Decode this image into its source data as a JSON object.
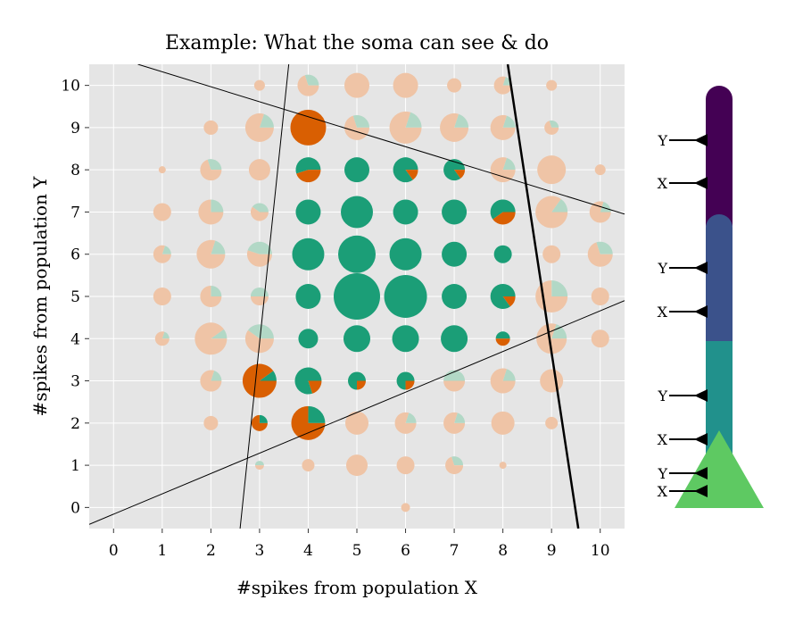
{
  "chart_data": {
    "type": "scatter",
    "title": "Example: What the soma can see & do",
    "xlabel": "#spikes from population X",
    "ylabel": "#spikes from population Y",
    "xlim": [
      -0.5,
      10.5
    ],
    "ylim": [
      -0.5,
      10.5
    ],
    "xticks": [
      0,
      1,
      2,
      3,
      4,
      5,
      6,
      7,
      8,
      9,
      10
    ],
    "yticks": [
      0,
      1,
      2,
      3,
      4,
      5,
      6,
      7,
      8,
      9,
      10
    ],
    "grid": true,
    "colors": {
      "background": "#e5e5e5",
      "grid": "#ffffff",
      "green": "#1b9e77",
      "orange": "#d95f02",
      "faded_green": "#b2d8c6",
      "faded_orange": "#efc4a6"
    },
    "points": [
      {
        "x": 3,
        "y": 10,
        "size": 0.3,
        "green": 0,
        "orange": 1,
        "faded": true
      },
      {
        "x": 4,
        "y": 10,
        "size": 0.6,
        "green": 0.3,
        "orange": 0.7,
        "faded": true
      },
      {
        "x": 5,
        "y": 10,
        "size": 0.7,
        "green": 0,
        "orange": 1,
        "faded": true
      },
      {
        "x": 6,
        "y": 10,
        "size": 0.7,
        "green": 0,
        "orange": 1,
        "faded": true
      },
      {
        "x": 7,
        "y": 10,
        "size": 0.4,
        "green": 0,
        "orange": 1,
        "faded": true
      },
      {
        "x": 8,
        "y": 10,
        "size": 0.5,
        "green": 0.2,
        "orange": 0.8,
        "faded": true
      },
      {
        "x": 9,
        "y": 10,
        "size": 0.3,
        "green": 0,
        "orange": 1,
        "faded": true
      },
      {
        "x": 2,
        "y": 9,
        "size": 0.4,
        "green": 0,
        "orange": 1,
        "faded": true
      },
      {
        "x": 3,
        "y": 9,
        "size": 0.8,
        "green": 0.2,
        "orange": 0.8,
        "faded": true
      },
      {
        "x": 4,
        "y": 9,
        "size": 1.0,
        "green": 0,
        "orange": 1,
        "faded": false
      },
      {
        "x": 5,
        "y": 9,
        "size": 0.7,
        "green": 0.3,
        "orange": 0.7,
        "faded": true
      },
      {
        "x": 6,
        "y": 9,
        "size": 0.9,
        "green": 0.2,
        "orange": 0.8,
        "faded": true
      },
      {
        "x": 7,
        "y": 9,
        "size": 0.8,
        "green": 0.2,
        "orange": 0.8,
        "faded": true
      },
      {
        "x": 8,
        "y": 9,
        "size": 0.7,
        "green": 0.2,
        "orange": 0.8,
        "faded": true
      },
      {
        "x": 9,
        "y": 9,
        "size": 0.4,
        "green": 0.3,
        "orange": 0.7,
        "faded": true
      },
      {
        "x": 1,
        "y": 8,
        "size": 0.2,
        "green": 0,
        "orange": 1,
        "faded": true
      },
      {
        "x": 2,
        "y": 8,
        "size": 0.6,
        "green": 0.3,
        "orange": 0.7,
        "faded": true
      },
      {
        "x": 3,
        "y": 8,
        "size": 0.6,
        "green": 0,
        "orange": 1,
        "faded": true
      },
      {
        "x": 4,
        "y": 8,
        "size": 0.7,
        "green": 0.55,
        "orange": 0.45,
        "faded": false
      },
      {
        "x": 5,
        "y": 8,
        "size": 0.7,
        "green": 1,
        "orange": 0,
        "faded": false
      },
      {
        "x": 6,
        "y": 8,
        "size": 0.7,
        "green": 0.85,
        "orange": 0.15,
        "faded": false
      },
      {
        "x": 7,
        "y": 8,
        "size": 0.6,
        "green": 0.85,
        "orange": 0.15,
        "faded": false
      },
      {
        "x": 8,
        "y": 8,
        "size": 0.7,
        "green": 0.2,
        "orange": 0.8,
        "faded": true
      },
      {
        "x": 9,
        "y": 8,
        "size": 0.8,
        "green": 0,
        "orange": 1,
        "faded": true
      },
      {
        "x": 10,
        "y": 8,
        "size": 0.3,
        "green": 0,
        "orange": 1,
        "faded": true
      },
      {
        "x": 1,
        "y": 7,
        "size": 0.5,
        "green": 0,
        "orange": 1,
        "faded": true
      },
      {
        "x": 2,
        "y": 7,
        "size": 0.7,
        "green": 0.25,
        "orange": 0.75,
        "faded": true
      },
      {
        "x": 3,
        "y": 7,
        "size": 0.5,
        "green": 0.4,
        "orange": 0.6,
        "faded": true
      },
      {
        "x": 4,
        "y": 7,
        "size": 0.7,
        "green": 1,
        "orange": 0,
        "faded": false
      },
      {
        "x": 5,
        "y": 7,
        "size": 0.9,
        "green": 1,
        "orange": 0,
        "faded": false
      },
      {
        "x": 6,
        "y": 7,
        "size": 0.7,
        "green": 1,
        "orange": 0,
        "faded": false
      },
      {
        "x": 7,
        "y": 7,
        "size": 0.7,
        "green": 1,
        "orange": 0,
        "faded": false
      },
      {
        "x": 8,
        "y": 7,
        "size": 0.7,
        "green": 0.6,
        "orange": 0.4,
        "faded": false
      },
      {
        "x": 9,
        "y": 7,
        "size": 0.9,
        "green": 0.15,
        "orange": 0.85,
        "faded": true
      },
      {
        "x": 10,
        "y": 7,
        "size": 0.6,
        "green": 0.2,
        "orange": 0.8,
        "faded": true
      },
      {
        "x": 1,
        "y": 6,
        "size": 0.5,
        "green": 0.2,
        "orange": 0.8,
        "faded": true
      },
      {
        "x": 2,
        "y": 6,
        "size": 0.8,
        "green": 0.2,
        "orange": 0.8,
        "faded": true
      },
      {
        "x": 3,
        "y": 6,
        "size": 0.7,
        "green": 0.45,
        "orange": 0.55,
        "faded": true
      },
      {
        "x": 4,
        "y": 6,
        "size": 0.9,
        "green": 1,
        "orange": 0,
        "faded": false
      },
      {
        "x": 5,
        "y": 6,
        "size": 1.05,
        "green": 1,
        "orange": 0,
        "faded": false
      },
      {
        "x": 6,
        "y": 6,
        "size": 0.9,
        "green": 1,
        "orange": 0,
        "faded": false
      },
      {
        "x": 7,
        "y": 6,
        "size": 0.7,
        "green": 1,
        "orange": 0,
        "faded": false
      },
      {
        "x": 8,
        "y": 6,
        "size": 0.5,
        "green": 1,
        "orange": 0,
        "faded": false
      },
      {
        "x": 9,
        "y": 6,
        "size": 0.5,
        "green": 0,
        "orange": 1,
        "faded": true
      },
      {
        "x": 10,
        "y": 6,
        "size": 0.7,
        "green": 0.3,
        "orange": 0.7,
        "faded": true
      },
      {
        "x": 1,
        "y": 5,
        "size": 0.5,
        "green": 0,
        "orange": 1,
        "faded": true
      },
      {
        "x": 2,
        "y": 5,
        "size": 0.6,
        "green": 0.25,
        "orange": 0.75,
        "faded": true
      },
      {
        "x": 3,
        "y": 5,
        "size": 0.5,
        "green": 0.5,
        "orange": 0.5,
        "faded": true
      },
      {
        "x": 4,
        "y": 5,
        "size": 0.7,
        "green": 1,
        "orange": 0,
        "faded": false
      },
      {
        "x": 5,
        "y": 5,
        "size": 1.3,
        "green": 1,
        "orange": 0,
        "faded": false
      },
      {
        "x": 6,
        "y": 5,
        "size": 1.2,
        "green": 1,
        "orange": 0,
        "faded": false
      },
      {
        "x": 7,
        "y": 5,
        "size": 0.7,
        "green": 1,
        "orange": 0,
        "faded": false
      },
      {
        "x": 8,
        "y": 5,
        "size": 0.7,
        "green": 0.85,
        "orange": 0.15,
        "faded": false
      },
      {
        "x": 9,
        "y": 5,
        "size": 0.9,
        "green": 0.25,
        "orange": 0.75,
        "faded": true
      },
      {
        "x": 10,
        "y": 5,
        "size": 0.5,
        "green": 0,
        "orange": 1,
        "faded": true
      },
      {
        "x": 1,
        "y": 4,
        "size": 0.4,
        "green": 0.2,
        "orange": 0.8,
        "faded": true
      },
      {
        "x": 2,
        "y": 4,
        "size": 0.9,
        "green": 0.1,
        "orange": 0.9,
        "faded": true
      },
      {
        "x": 3,
        "y": 4,
        "size": 0.8,
        "green": 0.4,
        "orange": 0.6,
        "faded": true
      },
      {
        "x": 4,
        "y": 4,
        "size": 0.55,
        "green": 1,
        "orange": 0,
        "faded": false
      },
      {
        "x": 5,
        "y": 4,
        "size": 0.75,
        "green": 1,
        "orange": 0,
        "faded": false
      },
      {
        "x": 6,
        "y": 4,
        "size": 0.75,
        "green": 1,
        "orange": 0,
        "faded": false
      },
      {
        "x": 7,
        "y": 4,
        "size": 0.75,
        "green": 1,
        "orange": 0,
        "faded": false
      },
      {
        "x": 8,
        "y": 4,
        "size": 0.4,
        "green": 0.5,
        "orange": 0.5,
        "faded": false
      },
      {
        "x": 9,
        "y": 4,
        "size": 0.85,
        "green": 0.2,
        "orange": 0.8,
        "faded": true
      },
      {
        "x": 10,
        "y": 4,
        "size": 0.5,
        "green": 0,
        "orange": 1,
        "faded": true
      },
      {
        "x": 2,
        "y": 3,
        "size": 0.6,
        "green": 0.2,
        "orange": 0.8,
        "faded": true
      },
      {
        "x": 3,
        "y": 3,
        "size": 0.95,
        "green": 0.1,
        "orange": 0.9,
        "faded": false
      },
      {
        "x": 4,
        "y": 3,
        "size": 0.75,
        "green": 0.8,
        "orange": 0.2,
        "faded": false
      },
      {
        "x": 5,
        "y": 3,
        "size": 0.5,
        "green": 0.75,
        "orange": 0.25,
        "faded": false
      },
      {
        "x": 6,
        "y": 3,
        "size": 0.5,
        "green": 0.75,
        "orange": 0.25,
        "faded": false
      },
      {
        "x": 7,
        "y": 3,
        "size": 0.6,
        "green": 0.5,
        "orange": 0.5,
        "faded": true
      },
      {
        "x": 8,
        "y": 3,
        "size": 0.7,
        "green": 0.2,
        "orange": 0.8,
        "faded": true
      },
      {
        "x": 9,
        "y": 3,
        "size": 0.65,
        "green": 0,
        "orange": 1,
        "faded": true
      },
      {
        "x": 2,
        "y": 2,
        "size": 0.4,
        "green": 0,
        "orange": 1,
        "faded": true
      },
      {
        "x": 3,
        "y": 2,
        "size": 0.45,
        "green": 0.25,
        "orange": 0.75,
        "faded": false
      },
      {
        "x": 4,
        "y": 2,
        "size": 0.95,
        "green": 0.25,
        "orange": 0.75,
        "faded": false
      },
      {
        "x": 5,
        "y": 2,
        "size": 0.65,
        "green": 0,
        "orange": 1,
        "faded": true
      },
      {
        "x": 6,
        "y": 2,
        "size": 0.6,
        "green": 0.2,
        "orange": 0.8,
        "faded": true
      },
      {
        "x": 7,
        "y": 2,
        "size": 0.6,
        "green": 0.2,
        "orange": 0.8,
        "faded": true
      },
      {
        "x": 8,
        "y": 2,
        "size": 0.65,
        "green": 0,
        "orange": 1,
        "faded": true
      },
      {
        "x": 9,
        "y": 2,
        "size": 0.35,
        "green": 0,
        "orange": 1,
        "faded": true
      },
      {
        "x": 3,
        "y": 1,
        "size": 0.25,
        "green": 0.5,
        "orange": 0.5,
        "faded": true
      },
      {
        "x": 4,
        "y": 1,
        "size": 0.35,
        "green": 0,
        "orange": 1,
        "faded": true
      },
      {
        "x": 5,
        "y": 1,
        "size": 0.6,
        "green": 0,
        "orange": 1,
        "faded": true
      },
      {
        "x": 6,
        "y": 1,
        "size": 0.5,
        "green": 0,
        "orange": 1,
        "faded": true
      },
      {
        "x": 7,
        "y": 1,
        "size": 0.5,
        "green": 0.3,
        "orange": 0.7,
        "faded": true
      },
      {
        "x": 8,
        "y": 1,
        "size": 0.2,
        "green": 0,
        "orange": 1,
        "faded": true
      },
      {
        "x": 6,
        "y": 0,
        "size": 0.25,
        "green": 0,
        "orange": 1,
        "faded": true
      }
    ],
    "lines": [
      {
        "x1": -0.5,
        "y1": -0.4,
        "x2": 10.5,
        "y2": 4.9,
        "width": 1
      },
      {
        "x1": 0.5,
        "y1": 10.5,
        "x2": 10.5,
        "y2": 6.95,
        "width": 1
      },
      {
        "x1": 2.6,
        "y1": -0.5,
        "x2": 3.6,
        "y2": 10.5,
        "width": 1
      },
      {
        "x1": 9.55,
        "y1": -0.5,
        "x2": 8.1,
        "y2": 10.5,
        "width": 2.5
      }
    ]
  },
  "neuron": {
    "segment_colors": [
      "#440154",
      "#3b528b",
      "#21918c"
    ],
    "soma_color": "#5ec962",
    "synapse_labels": [
      "Y",
      "X",
      "Y",
      "X",
      "Y",
      "X",
      "Y",
      "X"
    ]
  }
}
